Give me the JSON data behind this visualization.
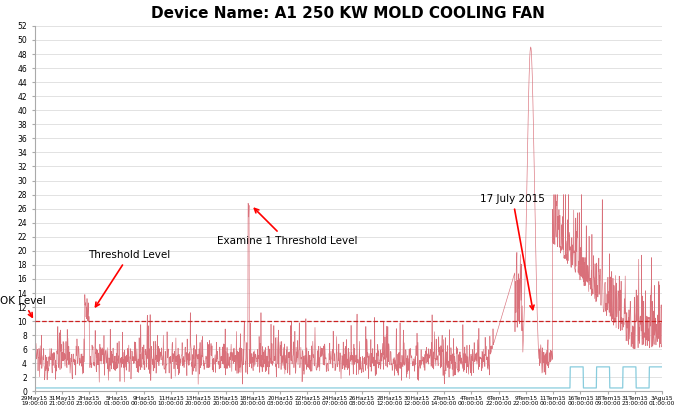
{
  "title": "Device Name: A1 250 KW MOLD COOLING FAN",
  "title_fontsize": 11,
  "ylim": [
    0,
    52
  ],
  "ok_level": 10,
  "line_color": "#d9707a",
  "dashed_line_color": "#cc2222",
  "secondary_color": "#88ccdd",
  "background_color": "#ffffff",
  "grid_color": "#cccccc",
  "annotation_color": "red",
  "num_points": 2000,
  "x_labels": [
    "29May15\n19:00:00",
    "31May15\n21:00:00",
    "2Haz15\n23:00:00",
    "5Haz15\n01:00:00",
    "9Haz15\n00:00:00",
    "11Haz15\n10:00:00",
    "13Haz15\n20:00:00",
    "15Haz15\n20:00:00",
    "18Haz15\n20:00:00",
    "20Haz15\n03:00:00",
    "22Haz15\n10:00:00",
    "24Haz15\n07:00:00",
    "26Haz15\n08:00:00",
    "28Haz15\n12:00:00",
    "30Haz15\n12:00:00",
    "2Tem15\n14:00:00",
    "4Tem15\n00:00:00",
    "6Tem15\n22:00:00",
    "9Tem15\n22:00:00",
    "11Tem15\n00:00:00",
    "16Tem15\n00:00:00",
    "18Tem15\n09:00:00",
    "31Tem15\n23:00:00",
    "3Agu15\n01:00:00"
  ],
  "annotation_ok_text": "OK Level",
  "annotation_threshold_text": "Threshold Level",
  "annotation_examine_text": "Examine 1 Threshold Level",
  "annotation_date_text": "17 July 2015"
}
